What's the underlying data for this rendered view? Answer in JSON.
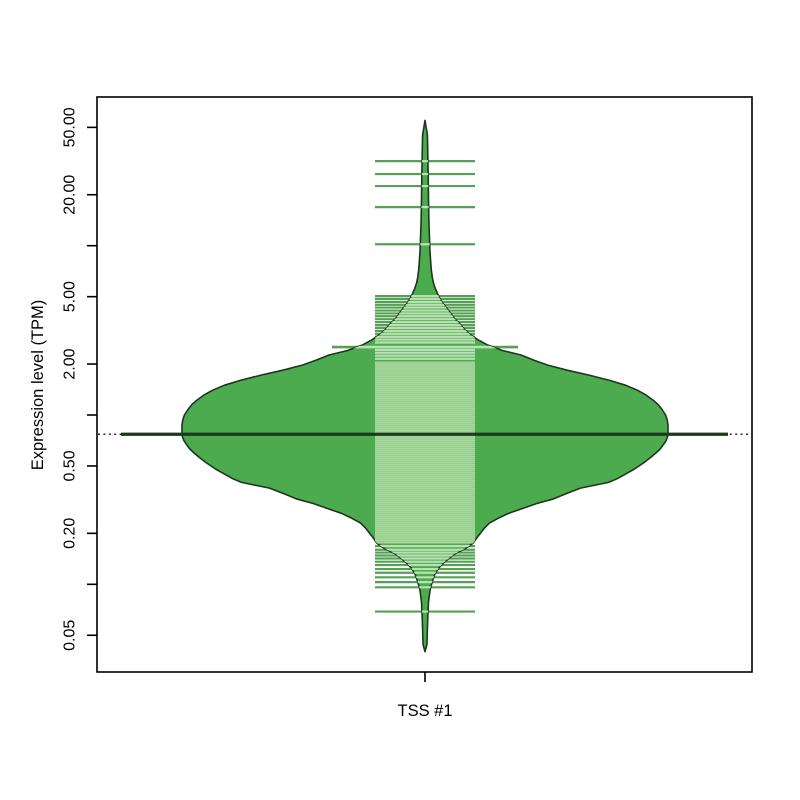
{
  "chart_data": {
    "type": "violin",
    "title": "",
    "xlabel": "",
    "ylabel": "Expression level (TPM)",
    "yscale": "log10",
    "ylim": [
      0.03,
      75
    ],
    "grid": false,
    "categories": [
      "TSS #1"
    ],
    "y_ticks": [
      {
        "value": 50,
        "label": "50.00"
      },
      {
        "value": 20,
        "label": "20.00"
      },
      {
        "value": 10,
        "label": ""
      },
      {
        "value": 5,
        "label": "5.00"
      },
      {
        "value": 2,
        "label": "2.00"
      },
      {
        "value": 1,
        "label": ""
      },
      {
        "value": 0.5,
        "label": "0.50"
      },
      {
        "value": 0.2,
        "label": "0.20"
      },
      {
        "value": 0.1,
        "label": ""
      },
      {
        "value": 0.05,
        "label": "0.05"
      }
    ],
    "series": [
      {
        "name": "TSS #1",
        "average_tpm": 0.77,
        "overall_average_tpm": 0.77,
        "density_shape_value_widthfrac": [
          [
            55.0,
            0.0
          ],
          [
            45.0,
            0.01
          ],
          [
            38.0,
            0.011
          ],
          [
            32.0,
            0.012
          ],
          [
            26.0,
            0.013
          ],
          [
            21.0,
            0.014
          ],
          [
            17.0,
            0.015
          ],
          [
            14.0,
            0.016
          ],
          [
            11.5,
            0.018
          ],
          [
            9.4,
            0.02
          ],
          [
            8.2,
            0.023
          ],
          [
            7.2,
            0.026
          ],
          [
            6.5,
            0.03
          ],
          [
            6.0,
            0.035
          ],
          [
            5.6,
            0.042
          ],
          [
            5.2,
            0.052
          ],
          [
            4.9,
            0.06
          ],
          [
            4.6,
            0.072
          ],
          [
            4.3,
            0.088
          ],
          [
            4.0,
            0.105
          ],
          [
            3.7,
            0.122
          ],
          [
            3.5,
            0.14
          ],
          [
            3.2,
            0.163
          ],
          [
            3.0,
            0.185
          ],
          [
            2.8,
            0.215
          ],
          [
            2.6,
            0.255
          ],
          [
            2.4,
            0.32
          ],
          [
            2.26,
            0.395
          ],
          [
            2.1,
            0.45
          ],
          [
            1.97,
            0.505
          ],
          [
            1.84,
            0.585
          ],
          [
            1.72,
            0.675
          ],
          [
            1.6,
            0.76
          ],
          [
            1.5,
            0.825
          ],
          [
            1.4,
            0.875
          ],
          [
            1.31,
            0.91
          ],
          [
            1.22,
            0.94
          ],
          [
            1.15,
            0.96
          ],
          [
            1.07,
            0.977
          ],
          [
            1.0,
            0.99
          ],
          [
            0.93,
            0.997
          ],
          [
            0.87,
            1.0
          ],
          [
            0.81,
            1.0
          ],
          [
            0.76,
            1.0
          ],
          [
            0.71,
            0.993
          ],
          [
            0.67,
            0.982
          ],
          [
            0.63,
            0.968
          ],
          [
            0.6,
            0.952
          ],
          [
            0.56,
            0.928
          ],
          [
            0.52,
            0.898
          ],
          [
            0.48,
            0.862
          ],
          [
            0.45,
            0.828
          ],
          [
            0.42,
            0.79
          ],
          [
            0.4,
            0.755
          ],
          [
            0.37,
            0.64
          ],
          [
            0.345,
            0.585
          ],
          [
            0.32,
            0.53
          ],
          [
            0.3,
            0.46
          ],
          [
            0.28,
            0.4
          ],
          [
            0.263,
            0.345
          ],
          [
            0.245,
            0.3
          ],
          [
            0.23,
            0.265
          ],
          [
            0.215,
            0.245
          ],
          [
            0.2,
            0.228
          ],
          [
            0.187,
            0.212
          ],
          [
            0.175,
            0.198
          ],
          [
            0.163,
            0.168
          ],
          [
            0.152,
            0.125
          ],
          [
            0.142,
            0.098
          ],
          [
            0.133,
            0.075
          ],
          [
            0.124,
            0.055
          ],
          [
            0.116,
            0.042
          ],
          [
            0.108,
            0.034
          ],
          [
            0.101,
            0.028
          ],
          [
            0.094,
            0.022
          ],
          [
            0.088,
            0.019
          ],
          [
            0.082,
            0.016
          ],
          [
            0.077,
            0.014
          ],
          [
            0.072,
            0.013
          ],
          [
            0.067,
            0.012
          ],
          [
            0.061,
            0.011
          ],
          [
            0.055,
            0.01
          ],
          [
            0.049,
            0.009
          ],
          [
            0.044,
            0.008
          ],
          [
            0.04,
            0.0
          ]
        ],
        "rug_sparse_tpm": [
          31.6,
          26.5,
          22.5,
          16.9,
          10.2,
          5.04,
          4.85,
          4.66,
          4.48,
          4.31,
          4.14,
          3.98,
          3.83,
          3.68,
          3.54,
          3.4,
          3.27,
          3.14,
          3.02,
          2.9,
          2.79,
          2.68,
          2.42,
          2.33,
          2.24,
          2.15,
          0.168,
          0.16,
          0.154,
          0.148,
          0.142,
          0.136,
          0.13,
          0.123,
          0.117,
          0.11,
          0.103,
          0.096,
          0.069
        ],
        "rug_dense_range_tpm": {
          "from": 2.06,
          "to": 0.175,
          "count": 92
        },
        "wide_marker_tpm": 2.52
      }
    ],
    "colors": {
      "violin_fill": "#4cab4e",
      "violin_border": "#1e351e",
      "rug_line": "#55a055",
      "rug_line_light": "#b9e0b2",
      "band_fill": "#a9d8a1",
      "band_stripe": "#96ce8d",
      "average_line": "#1d3a1d",
      "overall_line": "#2b2b2b",
      "axis": "#000000"
    },
    "legend": null
  }
}
